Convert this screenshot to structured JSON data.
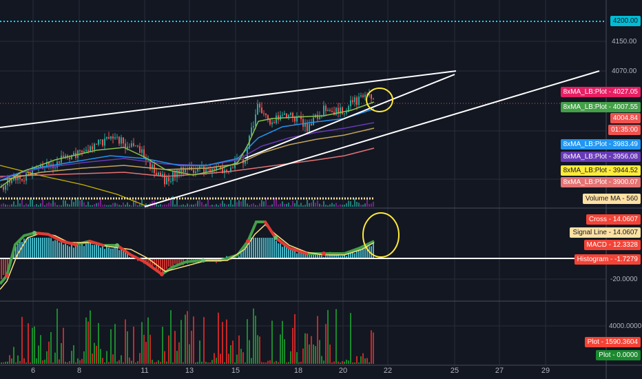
{
  "colors": {
    "background": "#131722",
    "grid": "#2a2e39",
    "separator": "#4a4e59",
    "up": "#26a69a",
    "down": "#ef5350",
    "cyan": "#00e5ff",
    "yellow": "#ffeb3b",
    "ma_green": "#8bc34a",
    "ma_blue": "#2196f3",
    "ma_purple": "#673ab7",
    "ma_gold": "#c5a55a",
    "ma_red": "#e57373",
    "ma_amber": "#ffc107"
  },
  "price_axis": {
    "ticks": [
      "4200.00",
      "4150.00",
      "4070.00"
    ]
  },
  "macd_axis": {
    "ticks": [
      "-20.0000"
    ]
  },
  "volume_axis": {
    "ticks": [
      "4000.0000"
    ]
  },
  "price_labels": [
    {
      "text": "8xMA_LB:Plot - 4027.05",
      "bg": "#e91e63",
      "fg": "#ffffff"
    },
    {
      "text": "8xMA_LB:Plot - 4007.55",
      "bg": "#43a047",
      "fg": "#ffffff"
    },
    {
      "text": "4004.84",
      "bg": "#ef5350",
      "fg": "#ffffff"
    },
    {
      "text": "01:35:00",
      "bg": "#ef5350",
      "fg": "#ffffff"
    },
    {
      "text": "8xMA_LB:Plot - 3983.49",
      "bg": "#2196f3",
      "fg": "#ffffff"
    },
    {
      "text": "8xMA_LB:Plot - 3956.08",
      "bg": "#673ab7",
      "fg": "#ffffff"
    },
    {
      "text": "8xMA_LB:Plot - 3944.52",
      "bg": "#ffeb3b",
      "fg": "#131722"
    },
    {
      "text": "8xMA_LB:Plot - 3900.07",
      "bg": "#e57373",
      "fg": "#ffffff"
    },
    {
      "text": "Volume MA - 560",
      "bg": "#ffe0a3",
      "fg": "#131722"
    }
  ],
  "level_label": {
    "text": "4200.00",
    "bg": "#00bcd4",
    "fg": "#131722"
  },
  "macd_labels": [
    {
      "text": "Cross - 14.0607",
      "bg": "#f44336",
      "fg": "#ffffff"
    },
    {
      "text": "Signal Line - 14.0607",
      "bg": "#ffe0a3",
      "fg": "#131722"
    },
    {
      "text": "MACD - 12.3328",
      "bg": "#f44336",
      "fg": "#ffffff"
    },
    {
      "text": "Histogram - -1.7279",
      "bg": "#f44336",
      "fg": "#ffffff"
    }
  ],
  "volume_labels": [
    {
      "text": "Plot - 1590.3604",
      "bg": "#f44336",
      "fg": "#ffffff"
    },
    {
      "text": "Plot - 0.0000",
      "bg": "#1b8a2f",
      "fg": "#ffffff"
    }
  ],
  "date_axis": {
    "ticks": [
      "6",
      "8",
      "11",
      "13",
      "15",
      "18",
      "20",
      "22",
      "25",
      "27",
      "29"
    ]
  }
}
